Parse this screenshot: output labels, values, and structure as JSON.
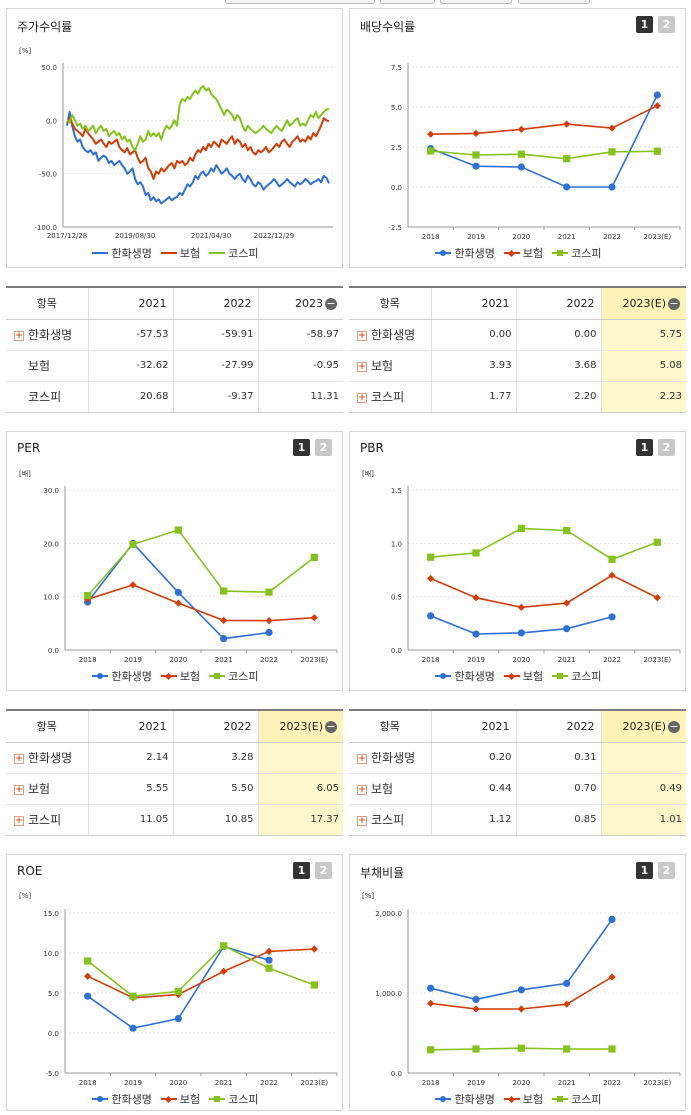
{
  "series_names": [
    "한화생명",
    "보험",
    "코스피"
  ],
  "colors": {
    "s0": "#2f6fd8",
    "s1": "#d43c0a",
    "s2": "#86c21c"
  },
  "panels": [
    {
      "title": "주가수익률",
      "unit": "[%]",
      "show_buttons": false,
      "chart_data": {
        "type": "line",
        "x_ticks": [
          "2017/12/28",
          "2019/08/30",
          "2021/04/30",
          "2022/12/29"
        ],
        "y_ticks": [
          "50.0",
          "0.0",
          "-50.0",
          "-100.0"
        ],
        "ylim": [
          -100,
          50
        ],
        "n_points": 101,
        "tick_positions": [
          0,
          26,
          55,
          79
        ],
        "series": [
          {
            "name": "한화생명",
            "style": "line-only",
            "values": [
              -5,
              8,
              -5,
              -15,
              -20,
              -18,
              -25,
              -28,
              -30,
              -28,
              -32,
              -30,
              -38,
              -35,
              -33,
              -35,
              -40,
              -38,
              -42,
              -40,
              -38,
              -42,
              -45,
              -50,
              -48,
              -45,
              -55,
              -60,
              -58,
              -62,
              -70,
              -68,
              -75,
              -72,
              -76,
              -74,
              -78,
              -76,
              -74,
              -72,
              -75,
              -73,
              -72,
              -68,
              -70,
              -65,
              -60,
              -62,
              -58,
              -52,
              -55,
              -50,
              -48,
              -52,
              -50,
              -45,
              -48,
              -42,
              -46,
              -50,
              -48,
              -45,
              -50,
              -52,
              -55,
              -52,
              -50,
              -55,
              -58,
              -52,
              -55,
              -60,
              -62,
              -58,
              -60,
              -65,
              -62,
              -60,
              -58,
              -55,
              -58,
              -62,
              -60,
              -58,
              -55,
              -58,
              -60,
              -62,
              -58,
              -60,
              -58,
              -55,
              -57,
              -60,
              -58,
              -57,
              -55,
              -58,
              -52,
              -54,
              -59
            ]
          },
          {
            "name": "보험",
            "style": "line-only",
            "values": [
              -2,
              2,
              -3,
              -8,
              -10,
              -12,
              -15,
              -8,
              -12,
              -15,
              -18,
              -22,
              -20,
              -18,
              -22,
              -25,
              -20,
              -22,
              -20,
              -18,
              -25,
              -28,
              -30,
              -26,
              -32,
              -30,
              -28,
              -35,
              -40,
              -38,
              -35,
              -45,
              -48,
              -55,
              -48,
              -50,
              -45,
              -48,
              -45,
              -42,
              -40,
              -45,
              -38,
              -40,
              -38,
              -42,
              -40,
              -35,
              -38,
              -32,
              -28,
              -30,
              -25,
              -28,
              -22,
              -25,
              -20,
              -22,
              -25,
              -18,
              -20,
              -22,
              -18,
              -15,
              -22,
              -18,
              -20,
              -25,
              -22,
              -28,
              -25,
              -30,
              -32,
              -28,
              -30,
              -28,
              -25,
              -30,
              -28,
              -25,
              -22,
              -25,
              -20,
              -18,
              -22,
              -25,
              -20,
              -18,
              -15,
              -20,
              -18,
              -20,
              -15,
              -18,
              -12,
              -15,
              -10,
              -5,
              2,
              0,
              -1
            ]
          },
          {
            "name": "코스피",
            "style": "line-only",
            "values": [
              0,
              -2,
              5,
              0,
              -5,
              -3,
              -8,
              -5,
              -10,
              -8,
              -5,
              -12,
              -8,
              -5,
              -10,
              -8,
              -15,
              -12,
              -10,
              -14,
              -12,
              -18,
              -15,
              -20,
              -18,
              -25,
              -28,
              -22,
              -15,
              -20,
              -18,
              -10,
              -15,
              -12,
              -15,
              -12,
              -18,
              -10,
              -5,
              -8,
              -5,
              0,
              -5,
              15,
              20,
              18,
              22,
              20,
              25,
              28,
              25,
              30,
              32,
              28,
              30,
              25,
              22,
              20,
              15,
              10,
              5,
              10,
              8,
              5,
              0,
              5,
              2,
              -5,
              -10,
              -5,
              -8,
              -10,
              -12,
              -10,
              -8,
              -5,
              -8,
              -10,
              -12,
              -8,
              -5,
              -8,
              -10,
              -5,
              0,
              -5,
              -3,
              0,
              2,
              -5,
              -3,
              -5,
              0,
              5,
              3,
              8,
              2,
              5,
              8,
              10,
              11
            ]
          }
        ]
      },
      "table": {
        "header": [
          "항목",
          "2021",
          "2022",
          "2023"
        ],
        "header_minus": true,
        "highlight_last": false,
        "rows": [
          {
            "label": "한화생명",
            "plus": true,
            "values": [
              "-57.53",
              "-59.91",
              "-58.97"
            ]
          },
          {
            "label": "보험",
            "plus": false,
            "values": [
              "-32.62",
              "-27.99",
              "-0.95"
            ]
          },
          {
            "label": "코스피",
            "plus": false,
            "values": [
              "20.68",
              "-9.37",
              "11.31"
            ]
          }
        ]
      }
    },
    {
      "title": "배당수익률",
      "unit": "",
      "show_buttons": true,
      "btn1": "1",
      "btn2": "2",
      "chart_data": {
        "type": "line",
        "x_ticks": [
          "2018",
          "2019",
          "2020",
          "2021",
          "2022",
          "2023(E)"
        ],
        "y_ticks": [
          "7.5",
          "5.0",
          "2.5",
          "0.0",
          "-2.5"
        ],
        "ylim": [
          -2.5,
          7.5
        ],
        "series": [
          {
            "name": "한화생명",
            "values": [
              2.4,
              1.3,
              1.25,
              0.0,
              0.0,
              5.75
            ]
          },
          {
            "name": "보험",
            "values": [
              3.3,
              3.35,
              3.6,
              3.93,
              3.68,
              5.08
            ]
          },
          {
            "name": "코스피",
            "values": [
              2.25,
              2.0,
              2.05,
              1.77,
              2.2,
              2.23
            ]
          }
        ]
      },
      "table": {
        "header": [
          "항목",
          "2021",
          "2022",
          "2023(E)"
        ],
        "header_minus": true,
        "highlight_last": true,
        "rows": [
          {
            "label": "한화생명",
            "plus": true,
            "values": [
              "0.00",
              "0.00",
              "5.75"
            ]
          },
          {
            "label": "보험",
            "plus": true,
            "values": [
              "3.93",
              "3.68",
              "5.08"
            ]
          },
          {
            "label": "코스피",
            "plus": true,
            "values": [
              "1.77",
              "2.20",
              "2.23"
            ]
          }
        ]
      }
    },
    {
      "title": "PER",
      "unit": "[배]",
      "show_buttons": true,
      "btn1": "1",
      "btn2": "2",
      "chart_data": {
        "type": "line",
        "x_ticks": [
          "2018",
          "2019",
          "2020",
          "2021",
          "2022",
          "2023(E)"
        ],
        "y_ticks": [
          "30.0",
          "20.0",
          "10.0",
          "0.0"
        ],
        "ylim": [
          0,
          30
        ],
        "series": [
          {
            "name": "한화생명",
            "values": [
              9.0,
              20.0,
              10.8,
              2.14,
              3.28,
              null
            ]
          },
          {
            "name": "보험",
            "values": [
              9.5,
              12.2,
              8.8,
              5.55,
              5.5,
              6.05
            ]
          },
          {
            "name": "코스피",
            "values": [
              10.2,
              19.8,
              22.5,
              11.05,
              10.85,
              17.37
            ]
          }
        ]
      },
      "table": {
        "header": [
          "항목",
          "2021",
          "2022",
          "2023(E)"
        ],
        "header_minus": true,
        "highlight_last": true,
        "rows": [
          {
            "label": "한화생명",
            "plus": true,
            "values": [
              "2.14",
              "3.28",
              ""
            ]
          },
          {
            "label": "보험",
            "plus": true,
            "values": [
              "5.55",
              "5.50",
              "6.05"
            ]
          },
          {
            "label": "코스피",
            "plus": true,
            "values": [
              "11.05",
              "10.85",
              "17.37"
            ]
          }
        ]
      }
    },
    {
      "title": "PBR",
      "unit": "[배]",
      "show_buttons": true,
      "btn1": "1",
      "btn2": "2",
      "chart_data": {
        "type": "line",
        "x_ticks": [
          "2018",
          "2019",
          "2020",
          "2021",
          "2022",
          "2023(E)"
        ],
        "y_ticks": [
          "1.5",
          "1.0",
          "0.5",
          "0.0"
        ],
        "ylim": [
          0,
          1.5
        ],
        "series": [
          {
            "name": "한화생명",
            "values": [
              0.32,
              0.15,
              0.16,
              0.2,
              0.31,
              null
            ]
          },
          {
            "name": "보험",
            "values": [
              0.67,
              0.49,
              0.4,
              0.44,
              0.7,
              0.49
            ]
          },
          {
            "name": "코스피",
            "values": [
              0.87,
              0.91,
              1.14,
              1.12,
              0.85,
              1.01
            ]
          }
        ]
      },
      "table": {
        "header": [
          "항목",
          "2021",
          "2022",
          "2023(E)"
        ],
        "header_minus": true,
        "highlight_last": true,
        "rows": [
          {
            "label": "한화생명",
            "plus": true,
            "values": [
              "0.20",
              "0.31",
              ""
            ]
          },
          {
            "label": "보험",
            "plus": true,
            "values": [
              "0.44",
              "0.70",
              "0.49"
            ]
          },
          {
            "label": "코스피",
            "plus": true,
            "values": [
              "1.12",
              "0.85",
              "1.01"
            ]
          }
        ]
      }
    },
    {
      "title": "ROE",
      "unit": "[%]",
      "show_buttons": true,
      "btn1": "1",
      "btn2": "2",
      "chart_data": {
        "type": "line",
        "x_ticks": [
          "2018",
          "2019",
          "2020",
          "2021",
          "2022",
          "2023(E)"
        ],
        "y_ticks": [
          "15.0",
          "10.0",
          "5.0",
          "0.0",
          "-5.0"
        ],
        "ylim": [
          -5,
          15
        ],
        "series": [
          {
            "name": "한화생명",
            "values": [
              4.6,
              0.6,
              1.8,
              10.8,
              9.1,
              null
            ]
          },
          {
            "name": "보험",
            "values": [
              7.1,
              4.4,
              4.8,
              7.7,
              10.2,
              10.5
            ]
          },
          {
            "name": "코스피",
            "values": [
              9.0,
              4.6,
              5.2,
              10.9,
              8.1,
              6.0
            ]
          }
        ]
      }
    },
    {
      "title": "부채비율",
      "unit": "[%]",
      "show_buttons": true,
      "btn1": "1",
      "btn2": "2",
      "chart_data": {
        "type": "line",
        "x_ticks": [
          "2018",
          "2019",
          "2020",
          "2021",
          "2022",
          "2023(E)"
        ],
        "y_ticks": [
          "2,000.0",
          "1,000.0",
          "0.0"
        ],
        "ylim": [
          0,
          2000
        ],
        "series": [
          {
            "name": "한화생명",
            "values": [
              1060,
              920,
              1040,
              1120,
              1920,
              null
            ]
          },
          {
            "name": "보험",
            "values": [
              870,
              800,
              800,
              860,
              1200,
              null
            ]
          },
          {
            "name": "코스피",
            "values": [
              290,
              300,
              310,
              300,
              300,
              null
            ]
          }
        ]
      }
    }
  ]
}
